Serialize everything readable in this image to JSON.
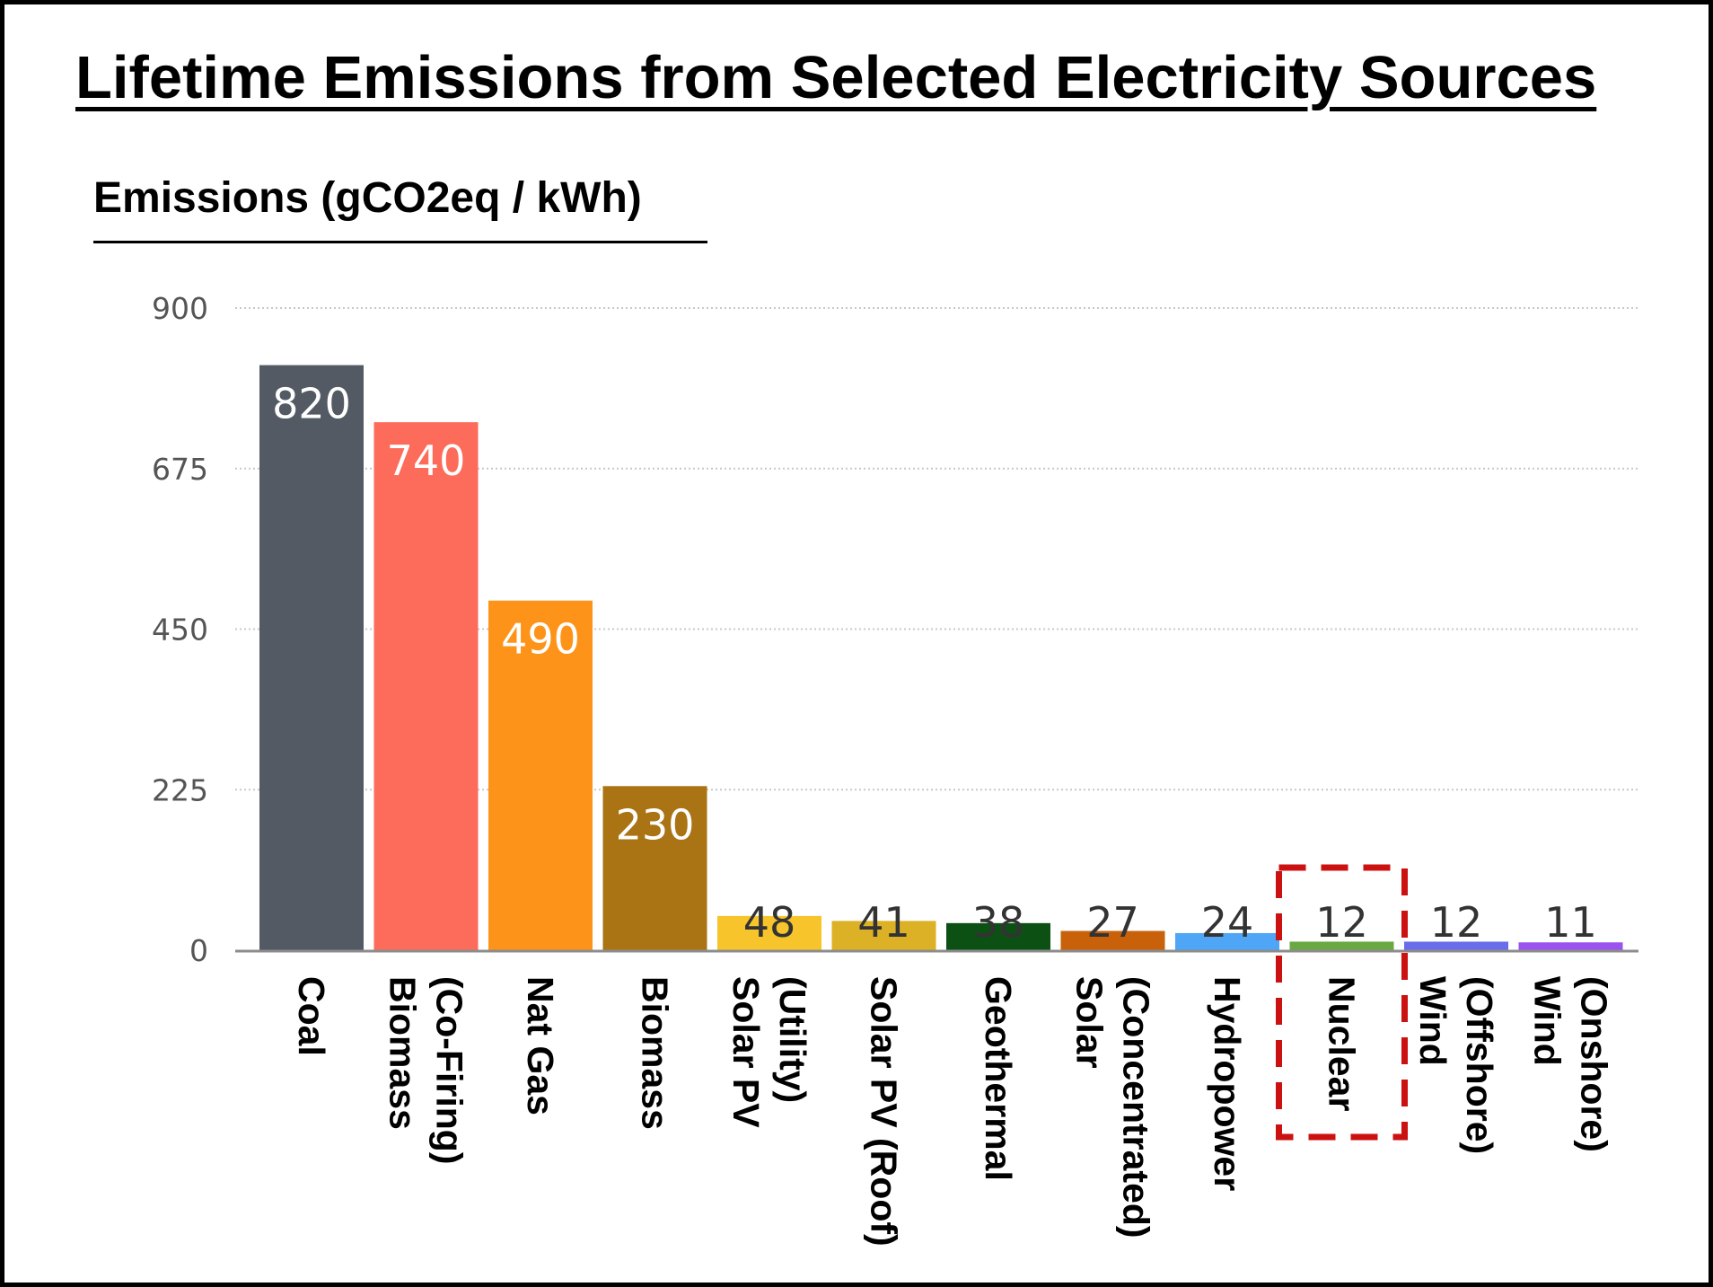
{
  "chart_data": {
    "type": "bar",
    "title": "Lifetime Emissions from Selected Electricity Sources",
    "ylabel": "Emissions (gCO2eq / kWh)",
    "xlabel": "",
    "ylim": [
      0,
      900
    ],
    "yticks": [
      0,
      225,
      450,
      675,
      900
    ],
    "grid": true,
    "categories": [
      "Coal",
      "Biomass (Co-Firing)",
      "Nat Gas",
      "Biomass",
      "Solar PV (Utility)",
      "Solar PV (Roof)",
      "Geothermal",
      "Solar (Concentrated)",
      "Hydropower",
      "Nuclear",
      "Wind (Offshore)",
      "Wind (Onshore)"
    ],
    "category_lines": [
      [
        "Coal"
      ],
      [
        "Biomass",
        "(Co-Firing)"
      ],
      [
        "Nat Gas"
      ],
      [
        "Biomass"
      ],
      [
        "Solar PV",
        "(Utility)"
      ],
      [
        "Solar PV (Roof)"
      ],
      [
        "Geothermal"
      ],
      [
        "Solar",
        "(Concentrated)"
      ],
      [
        "Hydropower"
      ],
      [
        "Nuclear"
      ],
      [
        "Wind",
        "(Offshore)"
      ],
      [
        "Wind",
        "(Onshore)"
      ]
    ],
    "values": [
      820,
      740,
      490,
      230,
      48,
      41,
      38,
      27,
      24,
      12,
      12,
      11
    ],
    "colors": [
      "#545a64",
      "#fd6b5a",
      "#fd9419",
      "#aa7314",
      "#f7c52b",
      "#ddb126",
      "#0c5014",
      "#c9610a",
      "#4fa5f6",
      "#6aa842",
      "#6a6de9",
      "#9a53ee"
    ],
    "highlight": {
      "category": "Nuclear",
      "color": "#cc1111",
      "style": "dashed-box"
    }
  }
}
